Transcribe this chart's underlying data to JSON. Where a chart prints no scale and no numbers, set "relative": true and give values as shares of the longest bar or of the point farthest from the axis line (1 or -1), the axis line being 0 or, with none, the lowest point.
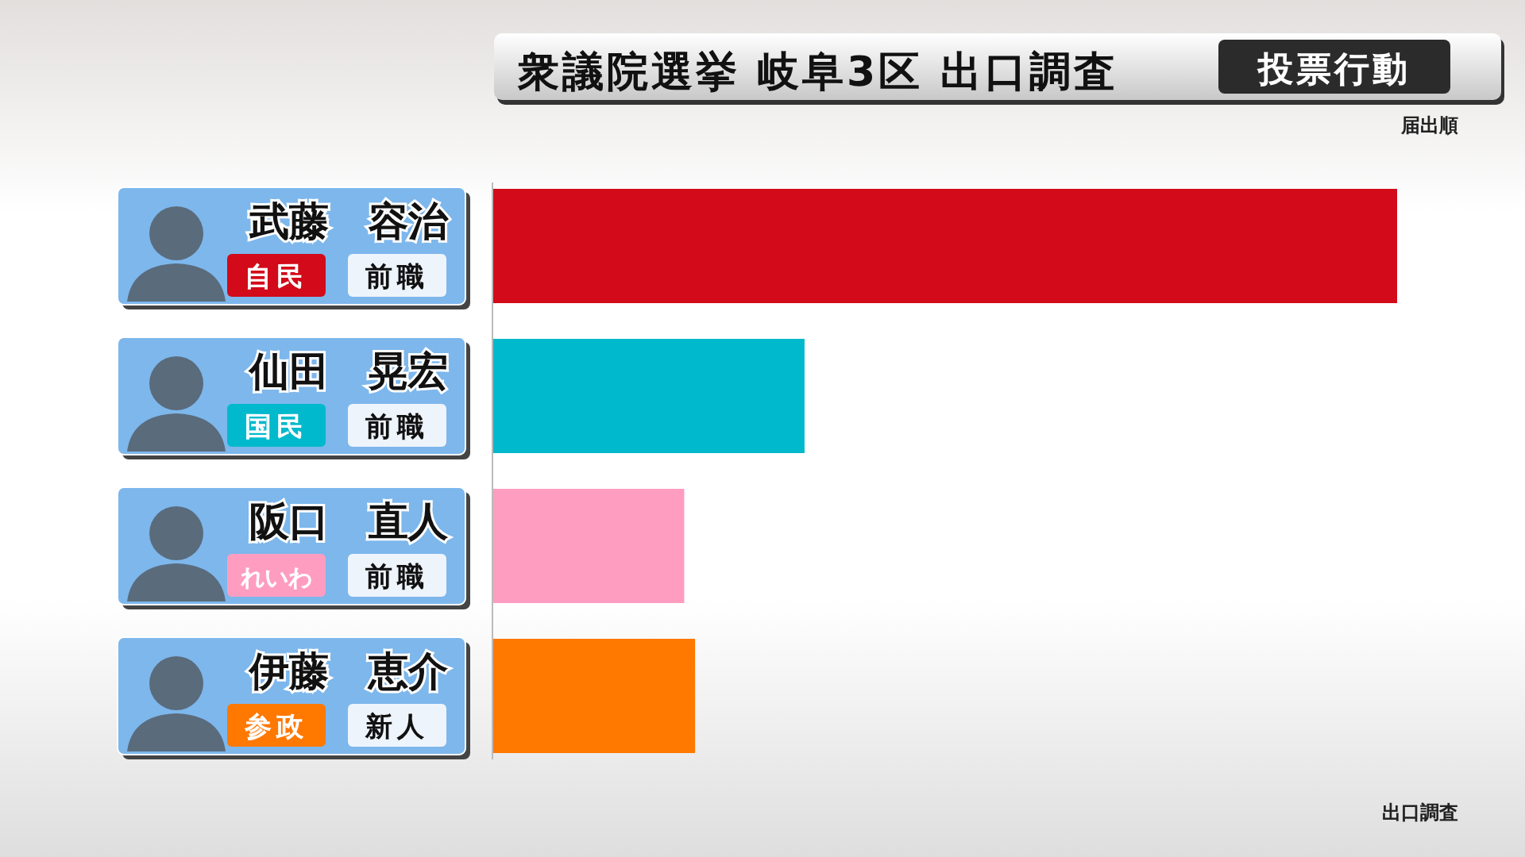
{
  "chart_data": {
    "type": "bar",
    "orientation": "horizontal",
    "relative": true,
    "title": "衆議院選挙 岐阜3区 出口調査",
    "subtitle": "投票行動",
    "categories": [
      "武藤　容治",
      "仙田　晃宏",
      "阪口　直人",
      "伊藤　恵介"
    ],
    "values": [
      1,
      0.345,
      0.212,
      0.224
    ],
    "colors": [
      "#d20a19",
      "#00b9cc",
      "#ff9dc1",
      "#ff7800"
    ],
    "annotations": [
      "自民",
      "前職",
      "国民",
      "前職",
      "れいわ",
      "前職",
      "参政",
      "新人",
      "届出順",
      "出口調査"
    ]
  }
}
